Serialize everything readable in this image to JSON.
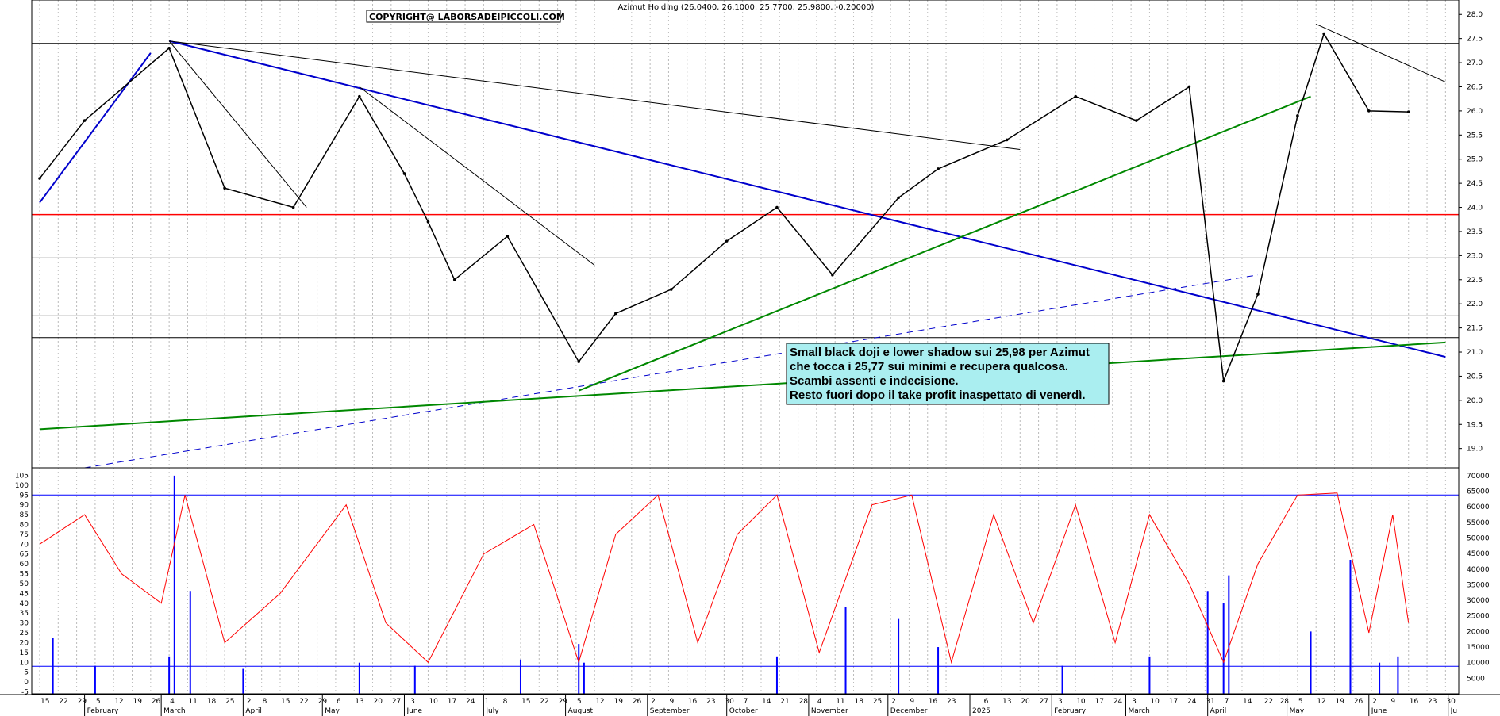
{
  "header": {
    "title": "Azimut Holding (26.0400, 26.1000, 25.7700, 25.9800, -0.20000)",
    "copyright": "COPYRIGHT@ LABORSADEIPICCOLI.COM"
  },
  "annotation": {
    "lines": [
      "Small black doji e lower shadow sui 25,98 per Azimut",
      "che tocca i 25,77 sui minimi e recupera qualcosa.",
      "Scambi assenti e indecisione.",
      "Resto fuori dopo il take profit inaspettato di venerdì."
    ]
  },
  "colors": {
    "price": "#000000",
    "resistance": "#ff0000",
    "trend_blue": "#0000cc",
    "trend_green": "#008800",
    "stochastic": "#ff0000",
    "volume": "#0000ff",
    "note_bg": "#aaeef0"
  },
  "chart_data": [
    {
      "type": "line",
      "name": "price",
      "ylim": [
        18.6,
        28.3
      ],
      "yticks": [
        19.0,
        19.5,
        20.0,
        20.5,
        21.0,
        21.5,
        22.0,
        22.5,
        23.0,
        23.5,
        24.0,
        24.5,
        25.0,
        25.5,
        26.0,
        26.5,
        27.0,
        27.5,
        28.0
      ],
      "ytick_labels": [
        "19.0",
        "19.5",
        "20.0",
        "20.5",
        "21.0",
        "21.5",
        "22.0",
        "22.5",
        "23.0",
        "23.5",
        "24.0",
        "24.5",
        "25.0",
        "25.5",
        "26.0",
        "26.5",
        "27.0",
        "27.5",
        "28.0"
      ],
      "x": [
        "2024-01-15",
        "2024-02-01",
        "2024-03-04",
        "2024-03-25",
        "2024-04-20",
        "2024-05-15",
        "2024-06-01",
        "2024-06-10",
        "2024-06-20",
        "2024-07-10",
        "2024-08-06",
        "2024-08-20",
        "2024-09-10",
        "2024-10-01",
        "2024-10-20",
        "2024-11-10",
        "2024-12-05",
        "2024-12-20",
        "2025-01-15",
        "2025-02-10",
        "2025-03-05",
        "2025-03-25",
        "2025-04-07",
        "2025-04-20",
        "2025-05-05",
        "2025-05-15",
        "2025-06-01",
        "2025-06-16"
      ],
      "close": [
        24.6,
        25.8,
        27.3,
        24.4,
        24.0,
        26.3,
        24.7,
        23.7,
        22.5,
        23.4,
        20.8,
        21.8,
        22.3,
        23.3,
        24.0,
        22.6,
        24.2,
        24.8,
        25.4,
        26.3,
        25.8,
        26.5,
        20.4,
        22.2,
        25.9,
        27.6,
        26.0,
        25.98
      ],
      "hlines": [
        27.4,
        23.85,
        22.95,
        21.75,
        21.3
      ],
      "trendlines": [
        {
          "color": "trend_blue",
          "from": [
            "2024-01-15",
            24.1
          ],
          "to": [
            "2024-02-26",
            27.2
          ],
          "dashed": false
        },
        {
          "color": "trend_blue",
          "from": [
            "2024-03-04",
            27.45
          ],
          "to": [
            "2025-06-30",
            20.9
          ],
          "dashed": false
        },
        {
          "color": "trend_blue",
          "from": [
            "2024-02-01",
            18.6
          ],
          "to": [
            "2025-04-20",
            22.6
          ],
          "dashed": true
        },
        {
          "color": "trend_green",
          "from": [
            "2024-01-15",
            19.4
          ],
          "to": [
            "2025-06-30",
            21.2
          ],
          "dashed": false
        },
        {
          "color": "trend_green",
          "from": [
            "2024-08-06",
            20.2
          ],
          "to": [
            "2025-05-10",
            26.3
          ],
          "dashed": false
        },
        {
          "color": "price",
          "from": [
            "2024-03-04",
            27.45
          ],
          "to": [
            "2025-01-20",
            25.2
          ],
          "dashed": false
        },
        {
          "color": "price",
          "from": [
            "2024-03-04",
            27.45
          ],
          "to": [
            "2024-04-25",
            24.0
          ],
          "dashed": false
        },
        {
          "color": "price",
          "from": [
            "2024-05-15",
            26.5
          ],
          "to": [
            "2024-08-12",
            22.8
          ],
          "dashed": false
        },
        {
          "color": "price",
          "from": [
            "2025-05-12",
            27.8
          ],
          "to": [
            "2025-06-30",
            26.6
          ],
          "dashed": false
        }
      ]
    },
    {
      "type": "line",
      "name": "stochastic",
      "ylim": [
        -6,
        108
      ],
      "yticks": [
        -5,
        0,
        5,
        10,
        15,
        20,
        25,
        30,
        35,
        40,
        45,
        50,
        55,
        60,
        65,
        70,
        75,
        80,
        85,
        90,
        95,
        100,
        105
      ],
      "ytick_labels": [
        "-5",
        "0",
        "5",
        "10",
        "15",
        "20",
        "25",
        "30",
        "35",
        "40",
        "45",
        "50",
        "55",
        "60",
        "65",
        "70",
        "75",
        "80",
        "85",
        "90",
        "95",
        "100",
        "105"
      ],
      "levels": [
        95,
        8
      ],
      "x": [
        "2024-01-15",
        "2024-02-01",
        "2024-02-15",
        "2024-03-01",
        "2024-03-10",
        "2024-03-25",
        "2024-04-15",
        "2024-05-10",
        "2024-05-25",
        "2024-06-10",
        "2024-07-01",
        "2024-07-20",
        "2024-08-06",
        "2024-08-20",
        "2024-09-05",
        "2024-09-20",
        "2024-10-05",
        "2024-10-20",
        "2024-11-05",
        "2024-11-25",
        "2024-12-10",
        "2024-12-25",
        "2025-01-10",
        "2025-01-25",
        "2025-02-10",
        "2025-02-25",
        "2025-03-10",
        "2025-03-25",
        "2025-04-07",
        "2025-04-20",
        "2025-05-05",
        "2025-05-20",
        "2025-06-01",
        "2025-06-10",
        "2025-06-16"
      ],
      "values": [
        70,
        85,
        55,
        40,
        95,
        20,
        45,
        90,
        30,
        10,
        65,
        80,
        10,
        75,
        95,
        20,
        75,
        95,
        15,
        90,
        95,
        10,
        85,
        30,
        90,
        20,
        85,
        50,
        10,
        60,
        95,
        96,
        25,
        85,
        30
      ]
    },
    {
      "type": "bar",
      "name": "volume",
      "ylim": [
        0,
        72000
      ],
      "yticks": [
        5000,
        10000,
        15000,
        20000,
        25000,
        30000,
        35000,
        40000,
        45000,
        50000,
        55000,
        60000,
        65000,
        70000
      ],
      "ytick_labels": [
        "5000",
        "10000",
        "15000",
        "20000",
        "25000",
        "30000",
        "35000",
        "40000",
        "45000",
        "50000",
        "55000",
        "60000",
        "65000",
        "70000"
      ],
      "x": [
        "2024-01-20",
        "2024-02-05",
        "2024-03-04",
        "2024-03-06",
        "2024-03-12",
        "2024-04-01",
        "2024-05-15",
        "2024-06-05",
        "2024-07-15",
        "2024-08-06",
        "2024-08-08",
        "2024-10-20",
        "2024-11-15",
        "2024-12-05",
        "2024-12-20",
        "2025-02-05",
        "2025-03-10",
        "2025-04-01",
        "2025-04-07",
        "2025-04-09",
        "2025-05-10",
        "2025-05-25",
        "2025-06-05",
        "2025-06-12"
      ],
      "values": [
        18000,
        9000,
        12000,
        70000,
        33000,
        8000,
        10000,
        9000,
        11000,
        16000,
        10000,
        12000,
        28000,
        24000,
        15000,
        9000,
        12000,
        33000,
        29000,
        38000,
        20000,
        43000,
        10000,
        12000
      ]
    }
  ],
  "xaxis": {
    "day_ticks": [
      [
        "2024-01-15",
        "15"
      ],
      [
        "2024-01-22",
        "22"
      ],
      [
        "2024-01-29",
        "29"
      ],
      [
        "2024-02-05",
        "5"
      ],
      [
        "2024-02-12",
        "12"
      ],
      [
        "2024-02-19",
        "19"
      ],
      [
        "2024-02-26",
        "26"
      ],
      [
        "2024-03-04",
        "4"
      ],
      [
        "2024-03-11",
        "11"
      ],
      [
        "2024-03-18",
        "18"
      ],
      [
        "2024-03-25",
        "25"
      ],
      [
        "2024-04-02",
        "2"
      ],
      [
        "2024-04-08",
        "8"
      ],
      [
        "2024-04-15",
        "15"
      ],
      [
        "2024-04-22",
        "22"
      ],
      [
        "2024-04-29",
        "29"
      ],
      [
        "2024-05-06",
        "6"
      ],
      [
        "2024-05-13",
        "13"
      ],
      [
        "2024-05-20",
        "20"
      ],
      [
        "2024-05-27",
        "27"
      ],
      [
        "2024-06-03",
        "3"
      ],
      [
        "2024-06-10",
        "10"
      ],
      [
        "2024-06-17",
        "17"
      ],
      [
        "2024-06-24",
        "24"
      ],
      [
        "2024-07-01",
        "1"
      ],
      [
        "2024-07-08",
        "8"
      ],
      [
        "2024-07-15",
        "15"
      ],
      [
        "2024-07-22",
        "22"
      ],
      [
        "2024-07-29",
        "29"
      ],
      [
        "2024-08-05",
        "5"
      ],
      [
        "2024-08-12",
        "12"
      ],
      [
        "2024-08-19",
        "19"
      ],
      [
        "2024-08-26",
        "26"
      ],
      [
        "2024-09-02",
        "2"
      ],
      [
        "2024-09-09",
        "9"
      ],
      [
        "2024-09-16",
        "16"
      ],
      [
        "2024-09-23",
        "23"
      ],
      [
        "2024-09-30",
        "30"
      ],
      [
        "2024-10-07",
        "7"
      ],
      [
        "2024-10-14",
        "14"
      ],
      [
        "2024-10-21",
        "21"
      ],
      [
        "2024-10-28",
        "28"
      ],
      [
        "2024-11-04",
        "4"
      ],
      [
        "2024-11-11",
        "11"
      ],
      [
        "2024-11-18",
        "18"
      ],
      [
        "2024-11-25",
        "25"
      ],
      [
        "2024-12-02",
        "2"
      ],
      [
        "2024-12-09",
        "9"
      ],
      [
        "2024-12-16",
        "16"
      ],
      [
        "2024-12-23",
        "23"
      ],
      [
        "2025-01-06",
        "6"
      ],
      [
        "2025-01-13",
        "13"
      ],
      [
        "2025-01-20",
        "20"
      ],
      [
        "2025-01-27",
        "27"
      ],
      [
        "2025-02-03",
        "3"
      ],
      [
        "2025-02-10",
        "10"
      ],
      [
        "2025-02-17",
        "17"
      ],
      [
        "2025-02-24",
        "24"
      ],
      [
        "2025-03-03",
        "3"
      ],
      [
        "2025-03-10",
        "10"
      ],
      [
        "2025-03-17",
        "17"
      ],
      [
        "2025-03-24",
        "24"
      ],
      [
        "2025-03-31",
        "31"
      ],
      [
        "2025-04-07",
        "7"
      ],
      [
        "2025-04-14",
        "14"
      ],
      [
        "2025-04-22",
        "22"
      ],
      [
        "2025-04-28",
        "28"
      ],
      [
        "2025-05-05",
        "5"
      ],
      [
        "2025-05-12",
        "12"
      ],
      [
        "2025-05-19",
        "19"
      ],
      [
        "2025-05-26",
        "26"
      ],
      [
        "2025-06-02",
        "2"
      ],
      [
        "2025-06-09",
        "9"
      ],
      [
        "2025-06-16",
        "16"
      ],
      [
        "2025-06-23",
        "23"
      ],
      [
        "2025-06-30",
        "30"
      ]
    ],
    "month_ticks": [
      [
        "2024-02-01",
        "February"
      ],
      [
        "2024-03-01",
        "March"
      ],
      [
        "2024-04-01",
        "April"
      ],
      [
        "2024-05-01",
        "May"
      ],
      [
        "2024-06-01",
        "June"
      ],
      [
        "2024-07-01",
        "July"
      ],
      [
        "2024-08-01",
        "August"
      ],
      [
        "2024-09-01",
        "September"
      ],
      [
        "2024-10-01",
        "October"
      ],
      [
        "2024-11-01",
        "November"
      ],
      [
        "2024-12-01",
        "December"
      ],
      [
        "2025-01-01",
        "2025"
      ],
      [
        "2025-02-01",
        "February"
      ],
      [
        "2025-03-01",
        "March"
      ],
      [
        "2025-04-01",
        "April"
      ],
      [
        "2025-05-01",
        "May"
      ],
      [
        "2025-06-01",
        "June"
      ],
      [
        "2025-07-01",
        "Ju"
      ]
    ]
  }
}
